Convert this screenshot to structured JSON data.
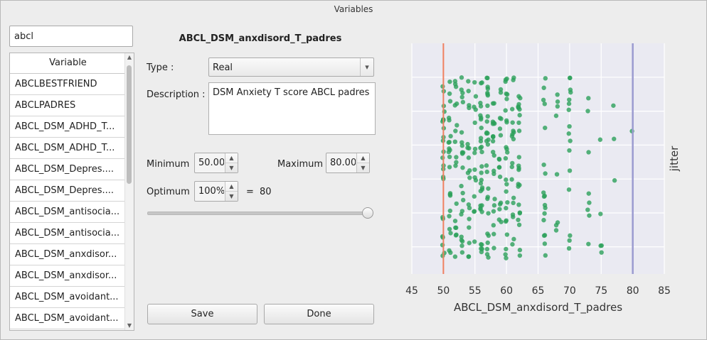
{
  "window": {
    "title": "Variables"
  },
  "search": {
    "value": "abcl"
  },
  "variable_list": {
    "header": "Variable",
    "items": [
      "ABCLBESTFRIEND",
      "ABCLPADRES",
      "ABCL_DSM_ADHD_T...",
      "ABCL_DSM_ADHD_T...",
      "ABCL_DSM_Depres....",
      "ABCL_DSM_Depres....",
      "ABCL_DSM_antisocia...",
      "ABCL_DSM_antisocia...",
      "ABCL_DSM_anxdisor...",
      "ABCL_DSM_anxdisor...",
      "ABCL_DSM_avoidant...",
      "ABCL_DSM_avoidant..."
    ]
  },
  "editor": {
    "variable_name": "ABCL_DSM_anxdisord_T_padres",
    "type_label": "Type :",
    "type_value": "Real",
    "description_label": "Description :",
    "description_value": "DSM Anxiety T score ABCL padres",
    "minimum_label": "Minimum",
    "minimum_value": "50.00",
    "maximum_label": "Maximum",
    "maximum_value": "80.00",
    "optimum_label": "Optimum",
    "optimum_value": "100%",
    "equals": "=",
    "optimum_result": "80",
    "slider_fraction": 1.0,
    "save_label": "Save",
    "done_label": "Done"
  },
  "chart_data": {
    "type": "scatter",
    "title": "",
    "xlabel": "ABCL_DSM_anxdisord_T_padres",
    "ylabel": "jitter",
    "xlim": [
      45,
      85
    ],
    "xticks": [
      45,
      50,
      55,
      60,
      65,
      70,
      75,
      80,
      85
    ],
    "grid": true,
    "background": "#eaeaf2",
    "point_color": "#2ca05a",
    "min_line": {
      "x": 50,
      "color": "#f08060"
    },
    "max_line": {
      "x": 80,
      "color": "#9b9bd0"
    },
    "point_columns": [
      {
        "x": 50,
        "count": 24
      },
      {
        "x": 51,
        "count": 22
      },
      {
        "x": 52,
        "count": 18
      },
      {
        "x": 53,
        "count": 22
      },
      {
        "x": 54,
        "count": 18
      },
      {
        "x": 55,
        "count": 14
      },
      {
        "x": 56,
        "count": 30
      },
      {
        "x": 57,
        "count": 28
      },
      {
        "x": 58,
        "count": 20
      },
      {
        "x": 59,
        "count": 16
      },
      {
        "x": 60,
        "count": 24
      },
      {
        "x": 61,
        "count": 18
      },
      {
        "x": 62,
        "count": 24
      },
      {
        "x": 66,
        "count": 18
      },
      {
        "x": 68,
        "count": 8
      },
      {
        "x": 70,
        "count": 16
      },
      {
        "x": 73,
        "count": 8
      },
      {
        "x": 75,
        "count": 5
      },
      {
        "x": 77,
        "count": 3
      },
      {
        "x": 80,
        "count": 1
      }
    ]
  }
}
